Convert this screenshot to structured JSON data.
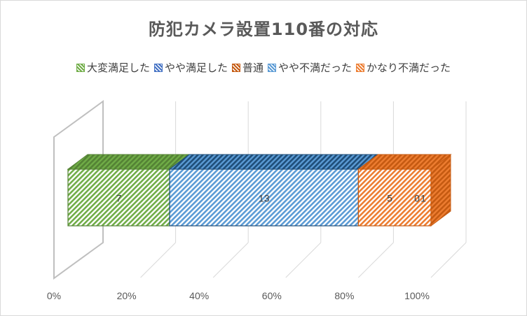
{
  "chart_data": {
    "type": "bar",
    "orientation": "horizontal",
    "stacked": "percent",
    "three_d": true,
    "title": "防犯カメラ設置110番の対応",
    "categories": [
      ""
    ],
    "series": [
      {
        "name": "大変満足した",
        "values": [
          7
        ],
        "color": "#70ad47",
        "color_dark": "#548235"
      },
      {
        "name": "やや満足した",
        "values": [
          0
        ],
        "color": "#4472c4",
        "color_dark": "#203864"
      },
      {
        "name": "普通",
        "values": [
          0
        ],
        "color": "#c55a11",
        "color_dark": "#843c0c"
      },
      {
        "name": "やや不満だった",
        "values": [
          13
        ],
        "color": "#5b9bd5",
        "color_dark": "#1f4e79"
      },
      {
        "name": "かなり不満だった",
        "values": [
          5
        ],
        "color": "#ed7d31",
        "color_dark": "#c55a11"
      }
    ],
    "data_labels": [
      "7",
      "13",
      "5",
      "0",
      "1"
    ],
    "x_ticks": [
      "0%",
      "20%",
      "40%",
      "60%",
      "80%",
      "100%"
    ],
    "xlim": [
      0,
      100
    ],
    "grid": true,
    "legend_position": "top"
  }
}
